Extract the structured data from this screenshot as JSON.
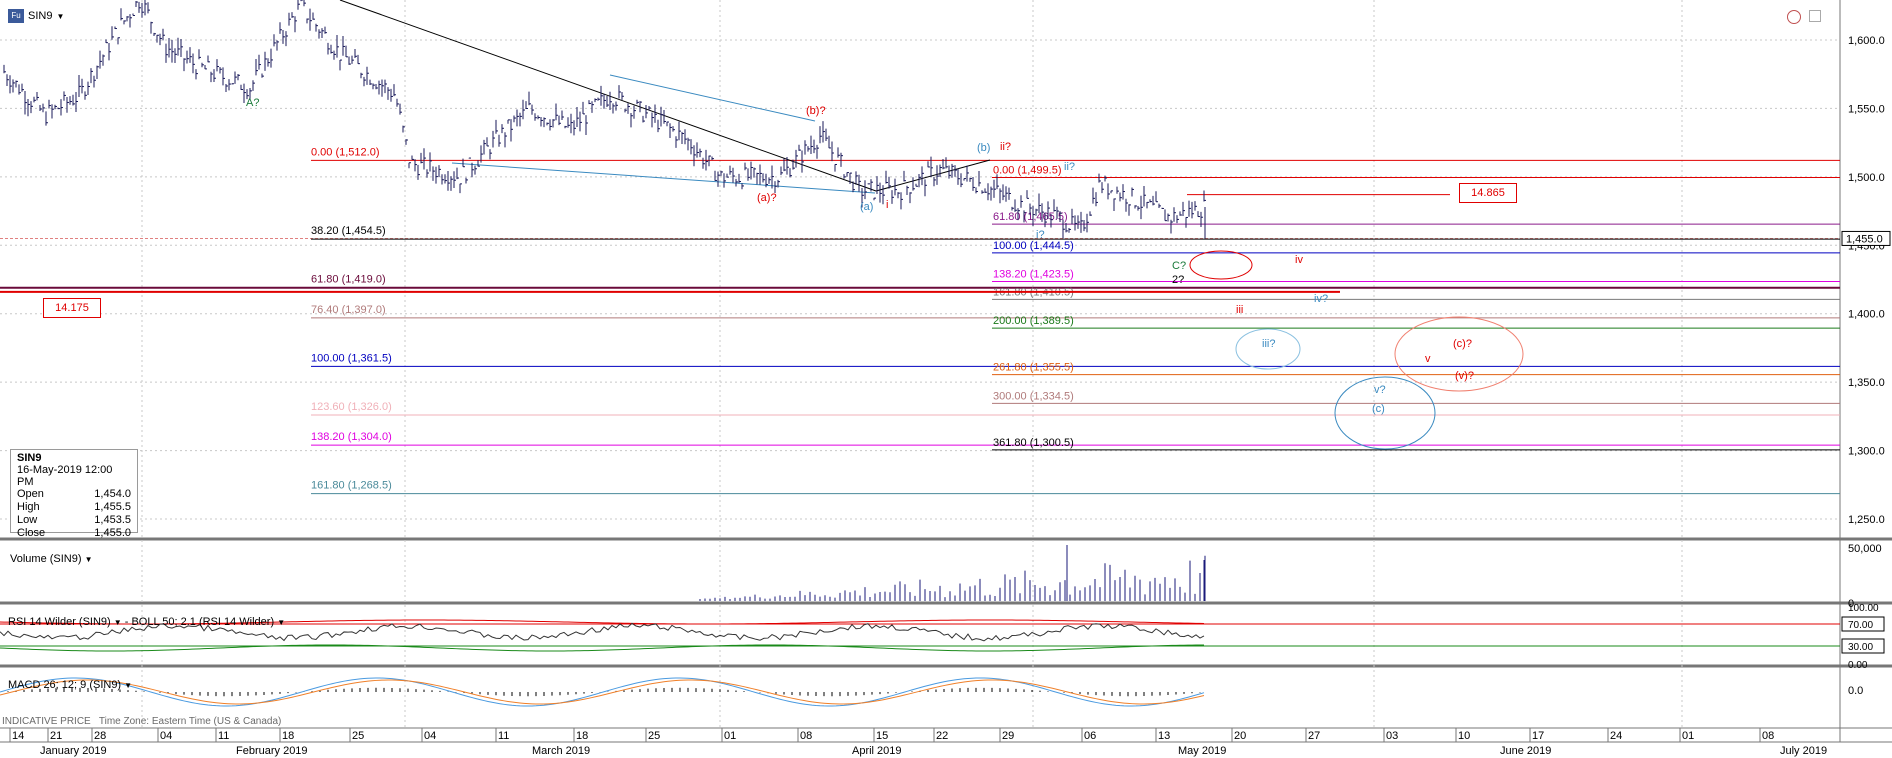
{
  "symbol": {
    "code": "SIN9",
    "badge": "Fu"
  },
  "price_axis": {
    "ticks": [
      "1,600.0",
      "1,550.0",
      "1,500.0",
      "1,450.0",
      "1,400.0",
      "1,350.0",
      "1,300.0",
      "1,250.0"
    ],
    "current": "1,455.0"
  },
  "date_axis": {
    "days": [
      "14",
      "21",
      "28",
      "04",
      "11",
      "18",
      "25",
      "04",
      "11",
      "18",
      "25",
      "01",
      "08",
      "15",
      "22",
      "29",
      "06",
      "13",
      "20",
      "27",
      "03",
      "10",
      "17",
      "24",
      "01",
      "08"
    ],
    "months": [
      "January 2019",
      "February 2019",
      "March 2019",
      "April 2019",
      "May 2019",
      "June 2019",
      "July 2019"
    ]
  },
  "fib_left": [
    {
      "text": "0.00 (1,512.0)",
      "color": "#e00000"
    },
    {
      "text": "38.20 (1,454.5)",
      "color": "#000000"
    },
    {
      "text": "61.80 (1,419.0)",
      "color": "#6a0a3a"
    },
    {
      "text": "76.40 (1,397.0)",
      "color": "#b07a7a"
    },
    {
      "text": "100.00 (1,361.5)",
      "color": "#0000c0"
    },
    {
      "text": "123.60 (1,326.0)",
      "color": "#f0b0b8"
    },
    {
      "text": "138.20 (1,304.0)",
      "color": "#e000e0"
    },
    {
      "text": "161.80 (1,268.5)",
      "color": "#4a8a9a"
    }
  ],
  "fib_right": [
    {
      "text": "0.00 (1,499.5)",
      "color": "#e00000"
    },
    {
      "text": "61.80 (1,465.5)",
      "color": "#8a1a8a"
    },
    {
      "text": "100.00 (1,444.5)",
      "color": "#0000c0"
    },
    {
      "text": "138.20 (1,423.5)",
      "color": "#e000e0"
    },
    {
      "text": "161.80 (1,410.5)",
      "color": "#7a7a7a"
    },
    {
      "text": "200.00 (1,389.5)",
      "color": "#1a7a1a"
    },
    {
      "text": "261.80 (1,355.5)",
      "color": "#e06010"
    },
    {
      "text": "300.00 (1,334.5)",
      "color": "#b07a7a"
    },
    {
      "text": "361.80 (1,300.5)",
      "color": "#000000"
    }
  ],
  "wave_labels": [
    {
      "text": "A?",
      "color": "#1a7a3a"
    },
    {
      "text": "(b)?",
      "color": "#e00000"
    },
    {
      "text": "(a)?",
      "color": "#e00000"
    },
    {
      "text": "(a)",
      "color": "#3a8ac0"
    },
    {
      "text": "i",
      "color": "#e00000"
    },
    {
      "text": "(b)",
      "color": "#3a8ac0"
    },
    {
      "text": "ii?",
      "color": "#e00000"
    },
    {
      "text": "ii?",
      "color": "#3a8ac0"
    },
    {
      "text": "i?",
      "color": "#3a8ac0"
    },
    {
      "text": "C?",
      "color": "#1a7a3a"
    },
    {
      "text": "2?",
      "color": "#000000"
    },
    {
      "text": "iv",
      "color": "#e00000"
    },
    {
      "text": "iv?",
      "color": "#3a8ac0"
    },
    {
      "text": "iii",
      "color": "#e00000"
    },
    {
      "text": "iii?",
      "color": "#3a8ac0"
    },
    {
      "text": "(c)?",
      "color": "#e00000"
    },
    {
      "text": "v",
      "color": "#e00000"
    },
    {
      "text": "(v)?",
      "color": "#e00000"
    },
    {
      "text": "v?",
      "color": "#3a8ac0"
    },
    {
      "text": "(c)",
      "color": "#3a8ac0"
    }
  ],
  "boxes": {
    "left": "14.175",
    "right": "14.865"
  },
  "ohlc": {
    "symbol": "SIN9",
    "datetime": "16-May-2019 12:00 PM",
    "rows": [
      {
        "k": "Open",
        "v": "1,454.0"
      },
      {
        "k": "High",
        "v": "1,455.5"
      },
      {
        "k": "Low",
        "v": "1,453.5"
      },
      {
        "k": "Close",
        "v": "1,455.0"
      }
    ]
  },
  "volume": {
    "title": "Volume (SIN9)",
    "ticks": [
      "50,000",
      "0"
    ]
  },
  "rsi": {
    "title": "RSI 14 Wilder (SIN9)",
    "boll": "BOLL 50; 2.1 (RSI 14 Wilder)",
    "ticks": [
      "100.00",
      "70.00",
      "30.00",
      "0.00"
    ]
  },
  "macd": {
    "title": "MACD 26; 12; 9 (SIN9)",
    "tick": "0.0"
  },
  "footer": {
    "indicative": "INDICATIVE PRICE",
    "timezone": "Time Zone: Eastern Time (US & Canada)"
  },
  "colors": {
    "bars": "#1a1a5a",
    "grid": "#c8c8c8",
    "red": "#e00000",
    "blue": "#3a8ac0"
  }
}
